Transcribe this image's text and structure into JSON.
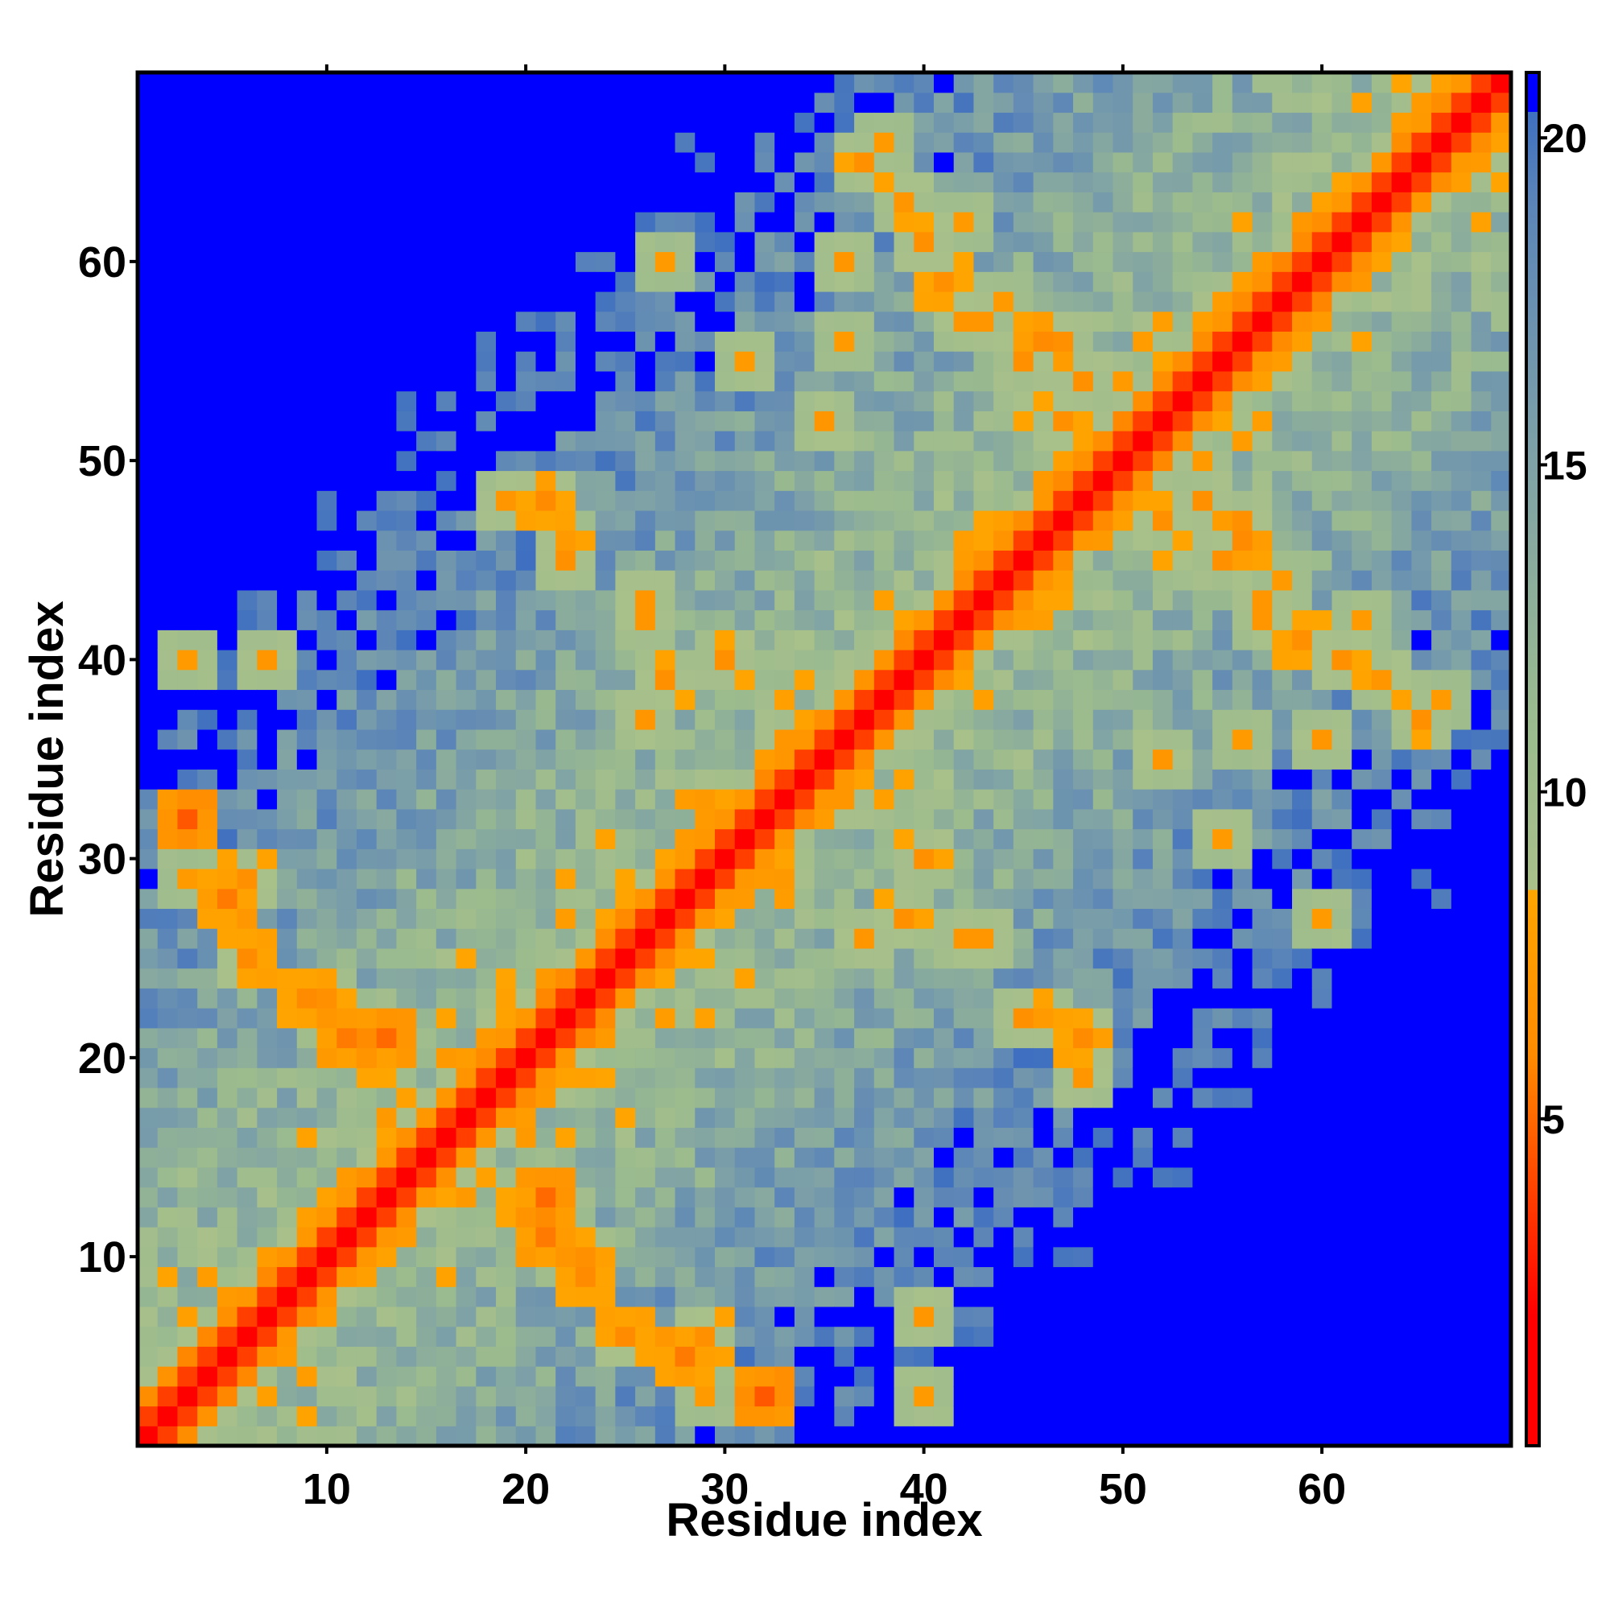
{
  "chart_data": {
    "type": "heatmap",
    "title": "",
    "xlabel": "Residue index",
    "ylabel": "Residue index",
    "n": 69,
    "xlim": [
      0.5,
      69.5
    ],
    "ylim": [
      0.5,
      69.5
    ],
    "x_ticks": [
      10,
      20,
      30,
      40,
      50,
      60
    ],
    "y_ticks": [
      10,
      20,
      30,
      40,
      50,
      60
    ],
    "colorbar": {
      "ticks": [
        5,
        10,
        15,
        20
      ],
      "range": [
        0,
        21
      ],
      "stops": [
        {
          "value": 0,
          "color": "#ff0000"
        },
        {
          "value": 2,
          "color": "#ff0000"
        },
        {
          "value": 4,
          "color": "#ff4500"
        },
        {
          "value": 6,
          "color": "#ff8c00"
        },
        {
          "value": 8.5,
          "color": "#ffa500"
        },
        {
          "value": 8.5,
          "color": "#a9c08a"
        },
        {
          "value": 11,
          "color": "#9bbb8e"
        },
        {
          "value": 15,
          "color": "#7fa2a6"
        },
        {
          "value": 19,
          "color": "#5b85b8"
        },
        {
          "value": 20.4,
          "color": "#3f6fc0"
        },
        {
          "value": 20.4,
          "color": "#0000ff"
        },
        {
          "value": 21,
          "color": "#0000ff"
        }
      ]
    },
    "matrix_model": {
      "description": "Symmetric residue-residue distance map: near-diagonal values in red/orange, mid-range values in green-grey, far contacts saturated blue; off-diagonal orange contact clusters between secondary-structure elements.",
      "contacts": [
        [
          3,
          32,
          4.5
        ],
        [
          5,
          28,
          5.5
        ],
        [
          6,
          25,
          6
        ],
        [
          9,
          23,
          6
        ],
        [
          11,
          21,
          5.5
        ],
        [
          13,
          21,
          5
        ],
        [
          6,
          29,
          6.5
        ],
        [
          7,
          40,
          7
        ],
        [
          3,
          40,
          7.5
        ],
        [
          10,
          22,
          7
        ],
        [
          21,
          12,
          6
        ],
        [
          23,
          10,
          6.5
        ],
        [
          25,
          6,
          6
        ],
        [
          28,
          5,
          7
        ],
        [
          29,
          3,
          7.5
        ],
        [
          19,
          48,
          7
        ],
        [
          22,
          46,
          7.5
        ],
        [
          26,
          43,
          7
        ],
        [
          30,
          40,
          6.5
        ],
        [
          33,
          36,
          7
        ],
        [
          37,
          26,
          7
        ],
        [
          39,
          27,
          6.5
        ],
        [
          42,
          26,
          7
        ],
        [
          45,
          22,
          6.5
        ],
        [
          48,
          21,
          6
        ],
        [
          37,
          65,
          6.5
        ],
        [
          40,
          61,
          6.5
        ],
        [
          43,
          57,
          7
        ],
        [
          46,
          56,
          6
        ],
        [
          48,
          54,
          6.5
        ],
        [
          52,
          47,
          6.5
        ],
        [
          55,
          45,
          6.5
        ],
        [
          57,
          42,
          7
        ],
        [
          59,
          41,
          6.5
        ],
        [
          61,
          40,
          7
        ],
        [
          39,
          63,
          7
        ],
        [
          42,
          62,
          7.5
        ],
        [
          44,
          58,
          7.5
        ],
        [
          47,
          56,
          6.5
        ],
        [
          56,
          36,
          7.5
        ],
        [
          60,
          36,
          7
        ],
        [
          63,
          39,
          7
        ],
        [
          66,
          38,
          7.5
        ],
        [
          27,
          60,
          7.5
        ],
        [
          31,
          55,
          7.5
        ],
        [
          35,
          52,
          7
        ]
      ]
    }
  }
}
